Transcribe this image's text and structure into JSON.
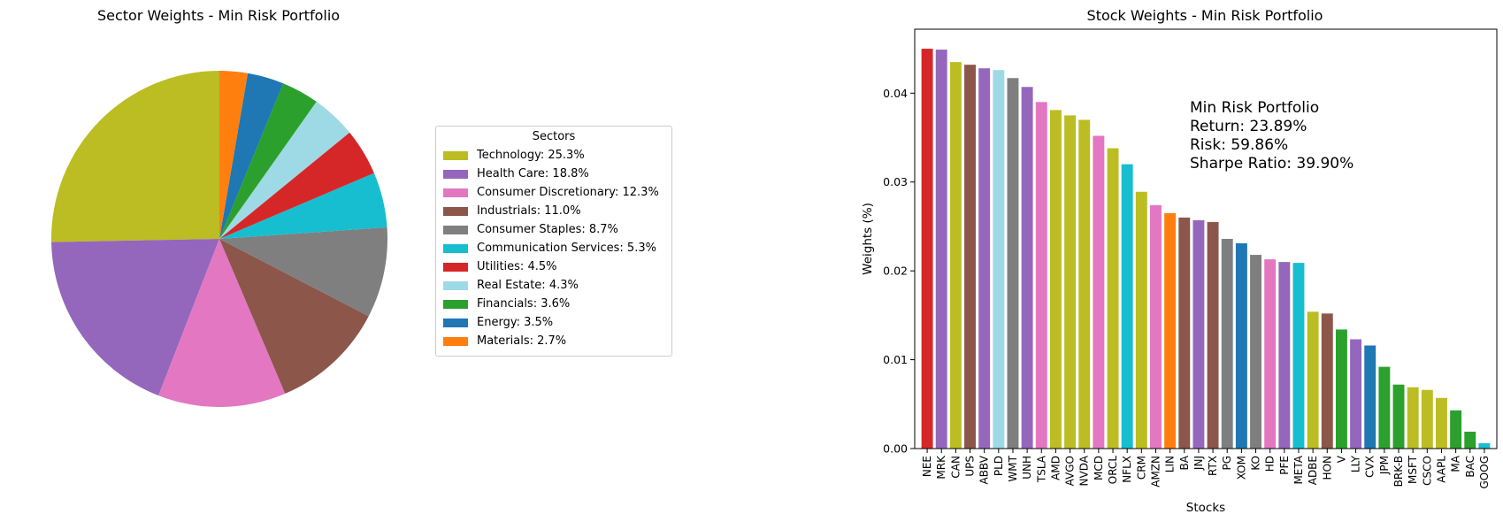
{
  "chart_data": [
    {
      "type": "pie",
      "title": "Sector Weights - Min Risk Portfolio",
      "legend_title": "Sectors",
      "legend_position": "right",
      "slices": [
        {
          "label": "Technology",
          "value": 25.3,
          "legend": "Technology: 25.3%",
          "color": "#bcbd22"
        },
        {
          "label": "Health Care",
          "value": 18.8,
          "legend": "Health Care: 18.8%",
          "color": "#9467bd"
        },
        {
          "label": "Consumer Discretionary",
          "value": 12.3,
          "legend": "Consumer Discretionary: 12.3%",
          "color": "#e377c2"
        },
        {
          "label": "Industrials",
          "value": 11.0,
          "legend": "Industrials: 11.0%",
          "color": "#8c564b"
        },
        {
          "label": "Consumer Staples",
          "value": 8.7,
          "legend": "Consumer Staples: 8.7%",
          "color": "#7f7f7f"
        },
        {
          "label": "Communication Services",
          "value": 5.3,
          "legend": "Communication Services: 5.3%",
          "color": "#17becf"
        },
        {
          "label": "Utilities",
          "value": 4.5,
          "legend": "Utilities: 4.5%",
          "color": "#d62728"
        },
        {
          "label": "Real Estate",
          "value": 4.3,
          "legend": "Real Estate: 4.3%",
          "color": "#9edae5"
        },
        {
          "label": "Financials",
          "value": 3.6,
          "legend": "Financials: 3.6%",
          "color": "#2ca02c"
        },
        {
          "label": "Energy",
          "value": 3.5,
          "legend": "Energy: 3.5%",
          "color": "#1f77b4"
        },
        {
          "label": "Materials",
          "value": 2.7,
          "legend": "Materials: 2.7%",
          "color": "#ff7f0e"
        }
      ]
    },
    {
      "type": "bar",
      "title": "Stock Weights - Min Risk Portfolio",
      "xlabel": "Stocks",
      "ylabel": "Weights (%)",
      "ylim": [
        0,
        0.0472
      ],
      "yticks": [
        "0.00",
        "0.01",
        "0.02",
        "0.03",
        "0.04"
      ],
      "grid": false,
      "categories": [
        "NEE",
        "MRK",
        "CAN",
        "UPS",
        "ABBV",
        "PLD",
        "WMT",
        "UNH",
        "TSLA",
        "AMD",
        "AVGO",
        "NVDA",
        "MCD",
        "ORCL",
        "NFLX",
        "CRM",
        "AMZN",
        "LIN",
        "BA",
        "JNJ",
        "RTX",
        "PG",
        "XOM",
        "KO",
        "HD",
        "PFE",
        "META",
        "ADBE",
        "HON",
        "V",
        "LLY",
        "CVX",
        "JPM",
        "BRK-B",
        "MSFT",
        "CSCO",
        "AAPL",
        "MA",
        "BAC",
        "GOOG"
      ],
      "values": [
        0.045,
        0.0449,
        0.0435,
        0.0432,
        0.0428,
        0.0426,
        0.0417,
        0.0407,
        0.039,
        0.0381,
        0.0375,
        0.037,
        0.0352,
        0.0338,
        0.032,
        0.0289,
        0.0274,
        0.0265,
        0.026,
        0.0257,
        0.0255,
        0.0236,
        0.0231,
        0.0218,
        0.0213,
        0.021,
        0.0209,
        0.0154,
        0.0152,
        0.0134,
        0.0123,
        0.0116,
        0.0092,
        0.0072,
        0.0069,
        0.0066,
        0.0057,
        0.0043,
        0.0019,
        0.0006
      ],
      "colors": [
        "#d62728",
        "#9467bd",
        "#bcbd22",
        "#8c564b",
        "#9467bd",
        "#9edae5",
        "#7f7f7f",
        "#9467bd",
        "#e377c2",
        "#bcbd22",
        "#bcbd22",
        "#bcbd22",
        "#e377c2",
        "#bcbd22",
        "#17becf",
        "#bcbd22",
        "#e377c2",
        "#ff7f0e",
        "#8c564b",
        "#9467bd",
        "#8c564b",
        "#7f7f7f",
        "#1f77b4",
        "#7f7f7f",
        "#e377c2",
        "#9467bd",
        "#17becf",
        "#bcbd22",
        "#8c564b",
        "#2ca02c",
        "#9467bd",
        "#1f77b4",
        "#2ca02c",
        "#2ca02c",
        "#bcbd22",
        "#bcbd22",
        "#bcbd22",
        "#2ca02c",
        "#2ca02c",
        "#17becf"
      ],
      "annotation": [
        "Min Risk Portfolio",
        "Return: 23.89%",
        "Risk: 59.86%",
        "Sharpe Ratio: 39.90%"
      ]
    }
  ]
}
